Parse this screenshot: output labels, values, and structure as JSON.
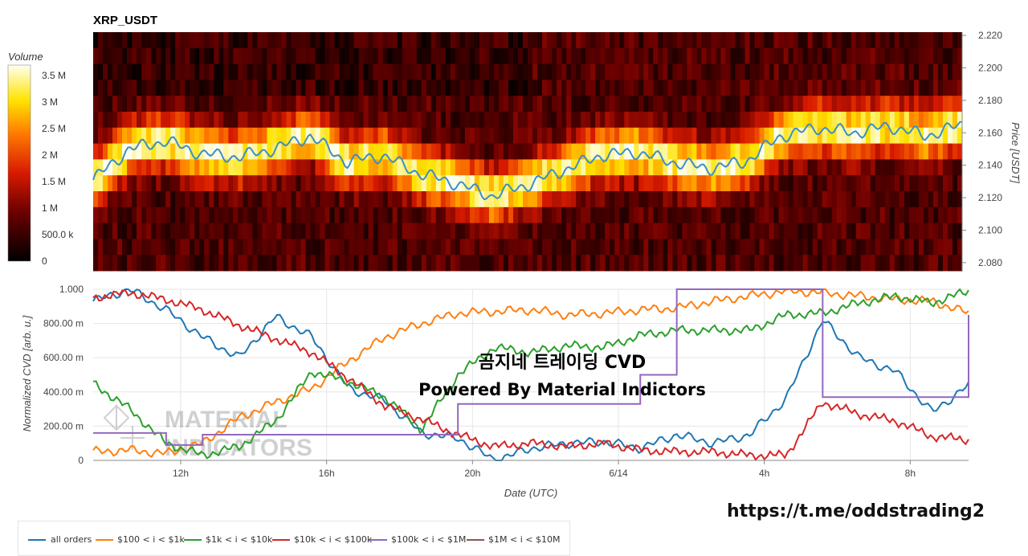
{
  "colors": {
    "all_orders": "#1f77b4",
    "r100_1k": "#ff7f0e",
    "r1k_10k": "#2ca02c",
    "r10k_100k": "#d62728",
    "r100k_1m": "#9467bd",
    "r1m_10m": "#8c564b",
    "watermark_title": "#000000",
    "url": "#111111"
  },
  "icons": {
    "watermark_logo": "material-indicators-logo"
  },
  "heatmap": {
    "title": "XRP_USDT",
    "colorbar_title": "Volume",
    "colorbar_ticks": [
      "3.5 M",
      "3 M",
      "2.5 M",
      "2 M",
      "1.5 M",
      "1 M",
      "500.0 k",
      "0"
    ],
    "y_axis_label": "Price [USDT]",
    "y_ticks": [
      "2.220",
      "2.200",
      "2.180",
      "2.160",
      "2.140",
      "2.120",
      "2.100",
      "2.080"
    ],
    "price_range": [
      2.075,
      2.222
    ]
  },
  "overlay": {
    "title": "곰지네 트레이딩 CVD",
    "subtitle": "Powered By Material Indictors",
    "watermark": [
      "MATERIAL",
      "INDICATORS"
    ]
  },
  "cvd": {
    "y_axis_label": "Normalized CVD [arb. u.]",
    "y_ticks": [
      "1.000",
      "800.00 m",
      "600.00 m",
      "400.00 m",
      "200.00 m",
      "0"
    ],
    "x_axis_label": "Date (UTC)",
    "x_ticks": [
      "12h",
      "16h",
      "20h",
      "6/14",
      "4h",
      "8h"
    ]
  },
  "legend": [
    {
      "label": "all orders",
      "color_key": "all_orders"
    },
    {
      "label": "$100 < i < $1k",
      "color_key": "r100_1k"
    },
    {
      "label": "$1k < i < $10k",
      "color_key": "r1k_10k"
    },
    {
      "label": "$10k < i < $100k",
      "color_key": "r10k_100k"
    },
    {
      "label": "$100k < i < $1M",
      "color_key": "r100k_1m"
    },
    {
      "label": "$1M < i < $10M",
      "color_key": "r1m_10m"
    }
  ],
  "url": "https://t.me/oddstrading2",
  "chart_data": [
    {
      "type": "heatmap",
      "title": "XRP_USDT",
      "ylabel": "Price [USDT]",
      "ylim": [
        2.075,
        2.222
      ],
      "colorbar": {
        "label": "Volume",
        "range": [
          0,
          3700000
        ]
      },
      "price_line": {
        "x_hours": [
          0,
          1,
          2,
          3,
          4,
          5,
          6,
          7,
          8,
          9,
          10,
          11,
          12,
          13,
          14,
          15,
          16,
          17,
          18,
          19,
          20,
          21,
          22,
          23,
          24
        ],
        "price": [
          2.131,
          2.15,
          2.155,
          2.147,
          2.145,
          2.15,
          2.158,
          2.142,
          2.146,
          2.135,
          2.129,
          2.121,
          2.128,
          2.137,
          2.146,
          2.148,
          2.142,
          2.138,
          2.142,
          2.158,
          2.163,
          2.16,
          2.164,
          2.158,
          2.165
        ]
      }
    },
    {
      "type": "line",
      "xlabel": "Date (UTC)",
      "ylabel": "Normalized CVD [arb. u.]",
      "ylim": [
        0,
        1.0
      ],
      "x_hours": [
        0,
        1,
        2,
        3,
        4,
        5,
        6,
        7,
        8,
        9,
        10,
        11,
        12,
        13,
        14,
        15,
        16,
        17,
        18,
        19,
        20,
        21,
        22,
        23,
        24
      ],
      "series": [
        {
          "name": "all orders",
          "color_key": "all_orders",
          "values": [
            0.93,
            1.0,
            0.88,
            0.72,
            0.6,
            0.84,
            0.72,
            0.42,
            0.35,
            0.16,
            0.13,
            0.0,
            0.07,
            0.1,
            0.11,
            0.07,
            0.15,
            0.1,
            0.15,
            0.36,
            0.82,
            0.6,
            0.52,
            0.28,
            0.44
          ]
        },
        {
          "name": "$100 < i < $1k",
          "color_key": "r100_1k",
          "values": [
            0.05,
            0.06,
            0.04,
            0.1,
            0.25,
            0.34,
            0.42,
            0.58,
            0.72,
            0.8,
            0.86,
            0.87,
            0.88,
            0.85,
            0.86,
            0.88,
            0.89,
            0.93,
            0.96,
            0.99,
            0.98,
            0.96,
            0.94,
            0.93,
            0.86
          ]
        },
        {
          "name": "$1k < i < $10k",
          "color_key": "r1k_10k",
          "values": [
            0.45,
            0.3,
            0.1,
            0.03,
            0.08,
            0.23,
            0.52,
            0.46,
            0.37,
            0.18,
            0.5,
            0.66,
            0.63,
            0.67,
            0.66,
            0.73,
            0.76,
            0.76,
            0.76,
            0.85,
            0.86,
            0.92,
            0.96,
            0.92,
            0.99
          ]
        },
        {
          "name": "$10k < i < $100k",
          "color_key": "r10k_100k",
          "values": [
            0.95,
            0.98,
            0.94,
            0.88,
            0.79,
            0.71,
            0.63,
            0.48,
            0.32,
            0.24,
            0.15,
            0.08,
            0.1,
            0.08,
            0.1,
            0.06,
            0.05,
            0.05,
            0.03,
            0.03,
            0.34,
            0.27,
            0.23,
            0.14,
            0.12
          ]
        },
        {
          "name": "$100k < i < $1M",
          "color_key": "r100k_1m",
          "values": [
            0.16,
            0.16,
            0.09,
            0.15,
            0.15,
            0.15,
            0.15,
            0.15,
            0.15,
            0.15,
            0.33,
            0.33,
            0.33,
            0.33,
            0.33,
            0.5,
            1.0,
            1.0,
            1.0,
            1.0,
            0.37,
            0.37,
            0.37,
            0.37,
            0.85
          ]
        },
        {
          "name": "$1M < i < $10M",
          "color_key": "r1m_10m",
          "values": []
        }
      ]
    }
  ]
}
